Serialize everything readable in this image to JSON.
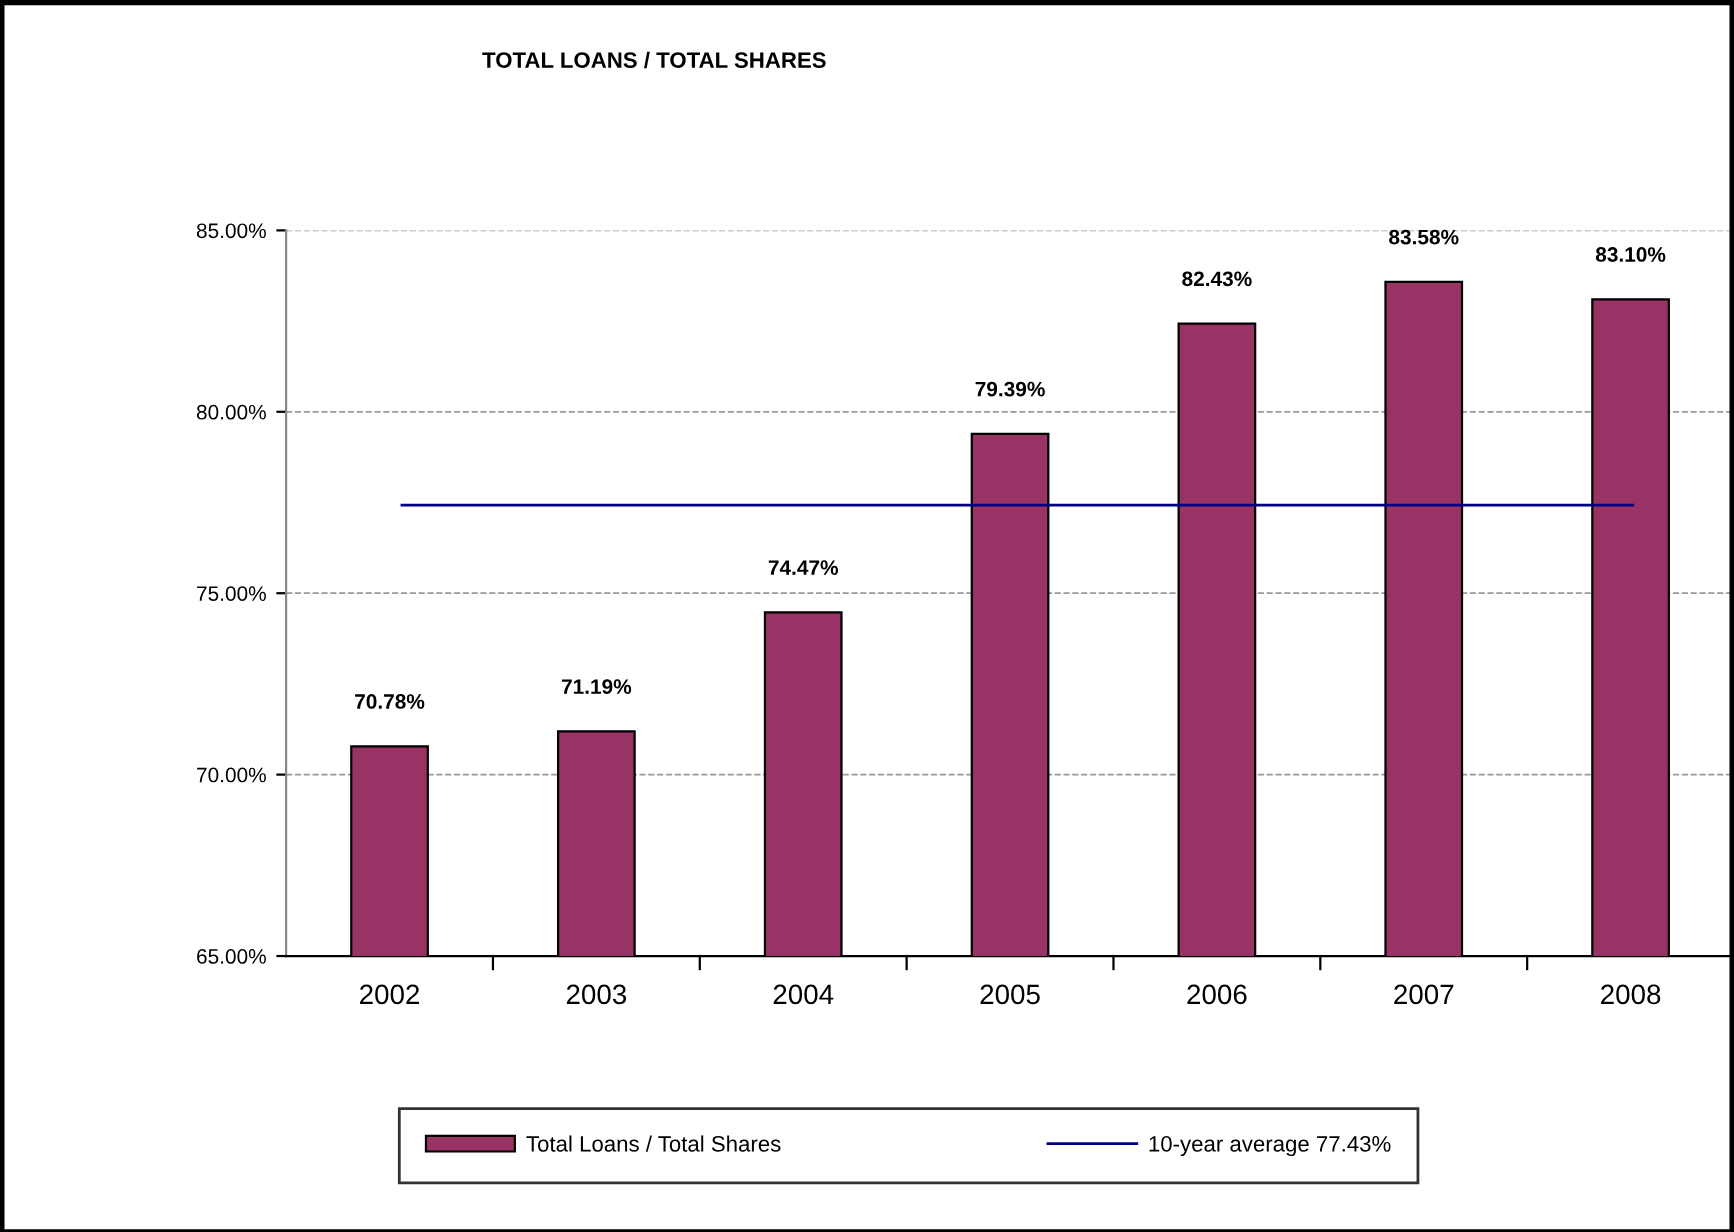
{
  "chart_data": {
    "type": "bar",
    "title": "TOTAL LOANS / TOTAL SHARES",
    "categories": [
      "2002",
      "2003",
      "2004",
      "2005",
      "2006",
      "2007",
      "2008"
    ],
    "series": [
      {
        "name": "Total Loans / Total Shares",
        "color": "#993366",
        "values": [
          70.78,
          71.19,
          74.47,
          79.39,
          82.43,
          83.58,
          83.1
        ],
        "value_labels": [
          "70.78%",
          "71.19%",
          "74.47%",
          "79.39%",
          "82.43%",
          "83.58%",
          "83.10%"
        ]
      }
    ],
    "ylim": [
      65,
      85
    ],
    "yticks": [
      {
        "value": 65,
        "label": "65.00%"
      },
      {
        "value": 70,
        "label": "70.00%"
      },
      {
        "value": 75,
        "label": "75.00%"
      },
      {
        "value": 80,
        "label": "80.00%"
      },
      {
        "value": 85,
        "label": "85.00%"
      }
    ],
    "ref_lines": [
      {
        "axis": "y",
        "value": 77.43,
        "label": "10-year average 77.43%",
        "color": "#000080",
        "line_style": "solid"
      }
    ],
    "grid": "y",
    "legend": "bottom"
  }
}
